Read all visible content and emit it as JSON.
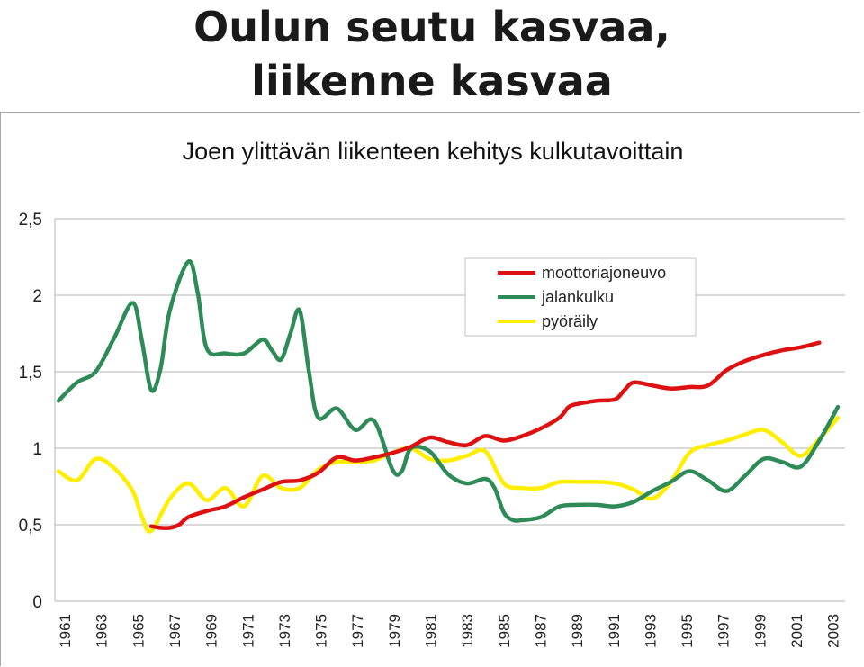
{
  "slide": {
    "title_line1": "Oulun seutu kasvaa,",
    "title_line2": "liikenne kasvaa"
  },
  "chart_data": {
    "type": "line",
    "title": "Joen ylittävän liikenteen kehitys kulkutavoittain",
    "xlabel": "",
    "ylabel": "",
    "xlim": [
      1961,
      2003
    ],
    "ylim": [
      0,
      2.5
    ],
    "y_ticks": [
      "0",
      "0,5",
      "1",
      "1,5",
      "2",
      "2,5"
    ],
    "y_tick_values": [
      0,
      0.5,
      1,
      1.5,
      2,
      2.5
    ],
    "x_ticks": [
      "1961",
      "1963",
      "1965",
      "1967",
      "1969",
      "1971",
      "1973",
      "1975",
      "1977",
      "1979",
      "1981",
      "1983",
      "1985",
      "1987",
      "1989",
      "1991",
      "1993",
      "1995",
      "1997",
      "1999",
      "2001",
      "2003"
    ],
    "grid": "horizontal",
    "legend_position": "top-right",
    "series": [
      {
        "name": "moottoriajoneuvo",
        "color": "#dd1111",
        "points": [
          [
            1966,
            0.49
          ],
          [
            1966.5,
            0.48
          ],
          [
            1967,
            0.48
          ],
          [
            1967.5,
            0.5
          ],
          [
            1968,
            0.55
          ],
          [
            1969,
            0.59
          ],
          [
            1970,
            0.62
          ],
          [
            1971,
            0.68
          ],
          [
            1972,
            0.73
          ],
          [
            1973,
            0.78
          ],
          [
            1974,
            0.79
          ],
          [
            1975,
            0.84
          ],
          [
            1976,
            0.94
          ],
          [
            1977,
            0.92
          ],
          [
            1978,
            0.94
          ],
          [
            1979,
            0.97
          ],
          [
            1980,
            1.01
          ],
          [
            1981,
            1.07
          ],
          [
            1982,
            1.04
          ],
          [
            1983,
            1.02
          ],
          [
            1984,
            1.08
          ],
          [
            1985,
            1.05
          ],
          [
            1986,
            1.08
          ],
          [
            1987,
            1.13
          ],
          [
            1988,
            1.2
          ],
          [
            1988.5,
            1.27
          ],
          [
            1989,
            1.29
          ],
          [
            1990,
            1.31
          ],
          [
            1991,
            1.32
          ],
          [
            1991.5,
            1.38
          ],
          [
            1992,
            1.43
          ],
          [
            1993,
            1.41
          ],
          [
            1994,
            1.39
          ],
          [
            1995,
            1.4
          ],
          [
            1996,
            1.41
          ],
          [
            1997,
            1.51
          ],
          [
            1998,
            1.57
          ],
          [
            1999,
            1.61
          ],
          [
            2000,
            1.64
          ],
          [
            2001,
            1.66
          ],
          [
            2002,
            1.69
          ]
        ]
      },
      {
        "name": "jalankulku",
        "color": "#2e8b57",
        "points": [
          [
            1961,
            1.31
          ],
          [
            1962,
            1.43
          ],
          [
            1963,
            1.5
          ],
          [
            1964,
            1.72
          ],
          [
            1965,
            1.95
          ],
          [
            1965.5,
            1.7
          ],
          [
            1966,
            1.38
          ],
          [
            1966.5,
            1.52
          ],
          [
            1967,
            1.9
          ],
          [
            1968,
            2.22
          ],
          [
            1968.5,
            2.02
          ],
          [
            1969,
            1.65
          ],
          [
            1970,
            1.62
          ],
          [
            1971,
            1.62
          ],
          [
            1972,
            1.71
          ],
          [
            1972.5,
            1.64
          ],
          [
            1973,
            1.58
          ],
          [
            1973.5,
            1.75
          ],
          [
            1974,
            1.9
          ],
          [
            1974.5,
            1.5
          ],
          [
            1975,
            1.2
          ],
          [
            1976,
            1.26
          ],
          [
            1977,
            1.12
          ],
          [
            1978,
            1.18
          ],
          [
            1979,
            0.86
          ],
          [
            1979.5,
            0.85
          ],
          [
            1980,
            1.0
          ],
          [
            1981,
            0.98
          ],
          [
            1982,
            0.83
          ],
          [
            1983,
            0.77
          ],
          [
            1984,
            0.8
          ],
          [
            1984.5,
            0.74
          ],
          [
            1985,
            0.58
          ],
          [
            1985.5,
            0.53
          ],
          [
            1986,
            0.53
          ],
          [
            1987,
            0.55
          ],
          [
            1988,
            0.62
          ],
          [
            1989,
            0.63
          ],
          [
            1990,
            0.63
          ],
          [
            1991,
            0.62
          ],
          [
            1992,
            0.65
          ],
          [
            1993,
            0.72
          ],
          [
            1994,
            0.78
          ],
          [
            1995,
            0.85
          ],
          [
            1996,
            0.79
          ],
          [
            1997,
            0.72
          ],
          [
            1998,
            0.82
          ],
          [
            1999,
            0.93
          ],
          [
            2000,
            0.91
          ],
          [
            2001,
            0.88
          ],
          [
            2002,
            1.05
          ],
          [
            2003,
            1.27
          ]
        ]
      },
      {
        "name": "pyöräily",
        "color": "#ffee00",
        "points": [
          [
            1961,
            0.85
          ],
          [
            1962,
            0.79
          ],
          [
            1963,
            0.93
          ],
          [
            1964,
            0.87
          ],
          [
            1965,
            0.72
          ],
          [
            1965.5,
            0.55
          ],
          [
            1966,
            0.46
          ],
          [
            1967,
            0.67
          ],
          [
            1968,
            0.77
          ],
          [
            1969,
            0.66
          ],
          [
            1970,
            0.74
          ],
          [
            1971,
            0.62
          ],
          [
            1972,
            0.82
          ],
          [
            1973,
            0.74
          ],
          [
            1974,
            0.74
          ],
          [
            1975,
            0.86
          ],
          [
            1976,
            0.91
          ],
          [
            1977,
            0.91
          ],
          [
            1978,
            0.92
          ],
          [
            1979,
            0.97
          ],
          [
            1980,
            1.0
          ],
          [
            1981,
            0.93
          ],
          [
            1982,
            0.92
          ],
          [
            1983,
            0.95
          ],
          [
            1984,
            0.98
          ],
          [
            1985,
            0.77
          ],
          [
            1986,
            0.74
          ],
          [
            1987,
            0.74
          ],
          [
            1988,
            0.78
          ],
          [
            1989,
            0.78
          ],
          [
            1990,
            0.78
          ],
          [
            1991,
            0.77
          ],
          [
            1992,
            0.73
          ],
          [
            1993,
            0.67
          ],
          [
            1994,
            0.78
          ],
          [
            1995,
            0.97
          ],
          [
            1996,
            1.02
          ],
          [
            1997,
            1.05
          ],
          [
            1998,
            1.09
          ],
          [
            1999,
            1.12
          ],
          [
            2000,
            1.04
          ],
          [
            2001,
            0.95
          ],
          [
            2002,
            1.06
          ],
          [
            2003,
            1.2
          ]
        ]
      }
    ]
  }
}
